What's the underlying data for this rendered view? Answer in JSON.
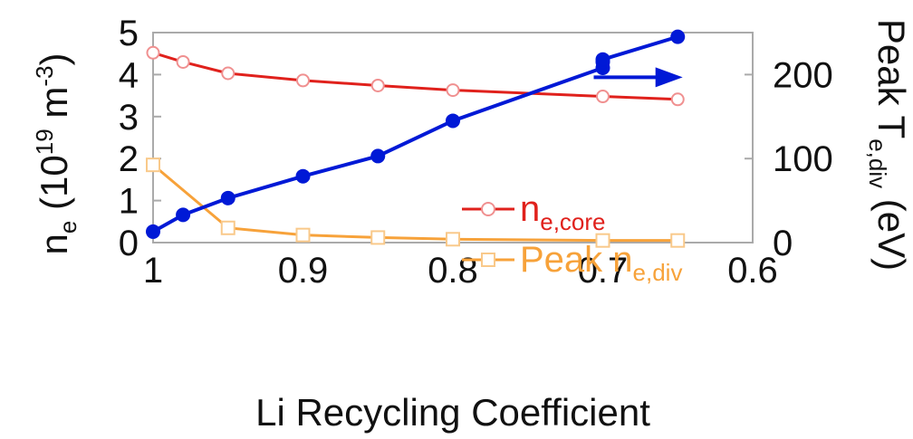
{
  "chart_data": {
    "type": "line",
    "x_axis": {
      "label": "Li Recycling Coefficient",
      "lim": [
        1.0,
        0.6
      ],
      "reversed": true,
      "ticks": [
        1,
        0.9,
        0.8,
        0.7,
        0.6
      ],
      "tick_labels": [
        "1",
        "0.9",
        "0.8",
        "0.7",
        "0.6"
      ]
    },
    "y_left": {
      "label_parts": [
        "n",
        "e",
        " (10",
        "19",
        " m",
        "-3",
        ")"
      ],
      "lim": [
        0,
        5
      ],
      "ticks": [
        0,
        1,
        2,
        3,
        4,
        5
      ],
      "tick_labels": [
        "0",
        "1",
        "2",
        "3",
        "4",
        "5"
      ]
    },
    "y_right": {
      "label_parts": [
        "Peak T",
        "e,div",
        " (eV)"
      ],
      "lim": [
        0,
        250
      ],
      "ticks": [
        0,
        100,
        200
      ],
      "tick_labels": [
        "0",
        "100",
        "200"
      ],
      "color": "#0019d6"
    },
    "series": [
      {
        "name": "n",
        "name_sub": "e,core",
        "axis": "left",
        "color": "#e0211c",
        "marker": "circle-open",
        "x": [
          1.0,
          0.98,
          0.95,
          0.9,
          0.85,
          0.8,
          0.7,
          0.65
        ],
        "y": [
          4.52,
          4.3,
          4.03,
          3.86,
          3.74,
          3.63,
          3.48,
          3.41
        ]
      },
      {
        "name": "Peak n",
        "name_sub": "e,div",
        "axis": "left",
        "color": "#f7a23a",
        "marker": "square-open",
        "x": [
          1.0,
          0.95,
          0.9,
          0.85,
          0.8,
          0.7,
          0.65
        ],
        "y": [
          1.85,
          0.35,
          0.18,
          0.12,
          0.08,
          0.05,
          0.05
        ]
      },
      {
        "name": "Peak T_e,div",
        "axis": "right",
        "color": "#0019d6",
        "marker": "circle-filled",
        "x": [
          1.0,
          0.98,
          0.95,
          0.9,
          0.85,
          0.8,
          0.7,
          0.7,
          0.7,
          0.65
        ],
        "y": [
          13,
          33,
          53,
          79,
          103,
          145,
          208,
          215,
          218,
          245
        ]
      }
    ],
    "annotations": [
      {
        "type": "arrow",
        "direction": "right",
        "color": "#0019d6",
        "x": [
          0.7,
          0.66
        ],
        "y_left": 3.85
      }
    ],
    "legend": {
      "placement": "lower-center-right"
    },
    "grid": false
  }
}
